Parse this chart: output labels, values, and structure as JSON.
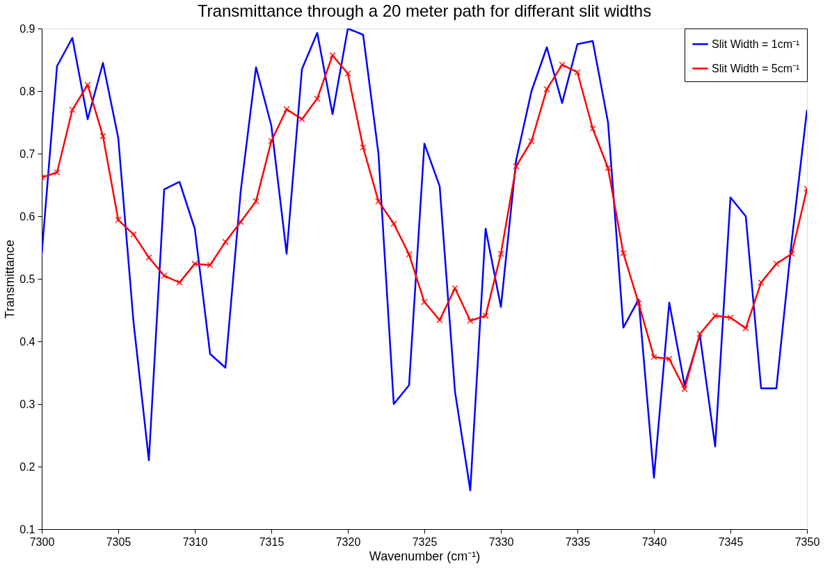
{
  "chart_data": {
    "type": "line",
    "title": "Transmittance through a 20 meter path for differant slit widths",
    "xlabel": "Wavenumber (cm⁻¹)",
    "ylabel": "Transmittance",
    "x": [
      7300,
      7301,
      7302,
      7303,
      7304,
      7305,
      7306,
      7307,
      7308,
      7309,
      7310,
      7311,
      7312,
      7313,
      7314,
      7315,
      7316,
      7317,
      7318,
      7319,
      7320,
      7321,
      7322,
      7323,
      7324,
      7325,
      7326,
      7327,
      7328,
      7329,
      7330,
      7331,
      7332,
      7333,
      7334,
      7335,
      7336,
      7337,
      7338,
      7339,
      7340,
      7341,
      7342,
      7343,
      7344,
      7345,
      7346,
      7347,
      7348,
      7349,
      7350
    ],
    "series": [
      {
        "name": "Slit Width = 1cm⁻¹",
        "color": "#0000ff",
        "marker": "none",
        "values": [
          0.54,
          0.84,
          0.885,
          0.755,
          0.845,
          0.725,
          0.43,
          0.21,
          0.643,
          0.655,
          0.58,
          0.38,
          0.358,
          0.64,
          0.838,
          0.745,
          0.54,
          0.835,
          0.893,
          0.763,
          0.9,
          0.89,
          0.7,
          0.3,
          0.33,
          0.716,
          0.648,
          0.32,
          0.162,
          0.58,
          0.455,
          0.69,
          0.8,
          0.87,
          0.781,
          0.875,
          0.88,
          0.75,
          0.422,
          0.467,
          0.182,
          0.462,
          0.33,
          0.41,
          0.232,
          0.63,
          0.6,
          0.325,
          0.325,
          0.56,
          0.77
        ]
      },
      {
        "name": "Slit Width = 5cm⁻¹",
        "color": "#ff0000",
        "marker": "cross",
        "values": [
          0.662,
          0.67,
          0.77,
          0.81,
          0.728,
          0.594,
          0.571,
          0.534,
          0.505,
          0.494,
          0.524,
          0.522,
          0.559,
          0.591,
          0.624,
          0.72,
          0.771,
          0.755,
          0.788,
          0.857,
          0.828,
          0.71,
          0.624,
          0.588,
          0.539,
          0.463,
          0.434,
          0.485,
          0.433,
          0.441,
          0.54,
          0.68,
          0.72,
          0.803,
          0.842,
          0.83,
          0.74,
          0.677,
          0.541,
          0.461,
          0.375,
          0.372,
          0.324,
          0.412,
          0.441,
          0.438,
          0.421,
          0.494,
          0.524,
          0.54,
          0.644
        ]
      }
    ],
    "xlim": [
      7300,
      7350
    ],
    "xticks": [
      7300,
      7305,
      7310,
      7315,
      7320,
      7325,
      7330,
      7335,
      7340,
      7345,
      7350
    ],
    "ylim": [
      0.1,
      0.9
    ],
    "yticks": [
      0.1,
      0.2,
      0.3,
      0.4,
      0.5,
      0.6,
      0.7,
      0.8,
      0.9
    ],
    "grid": false,
    "legend": "top right"
  }
}
